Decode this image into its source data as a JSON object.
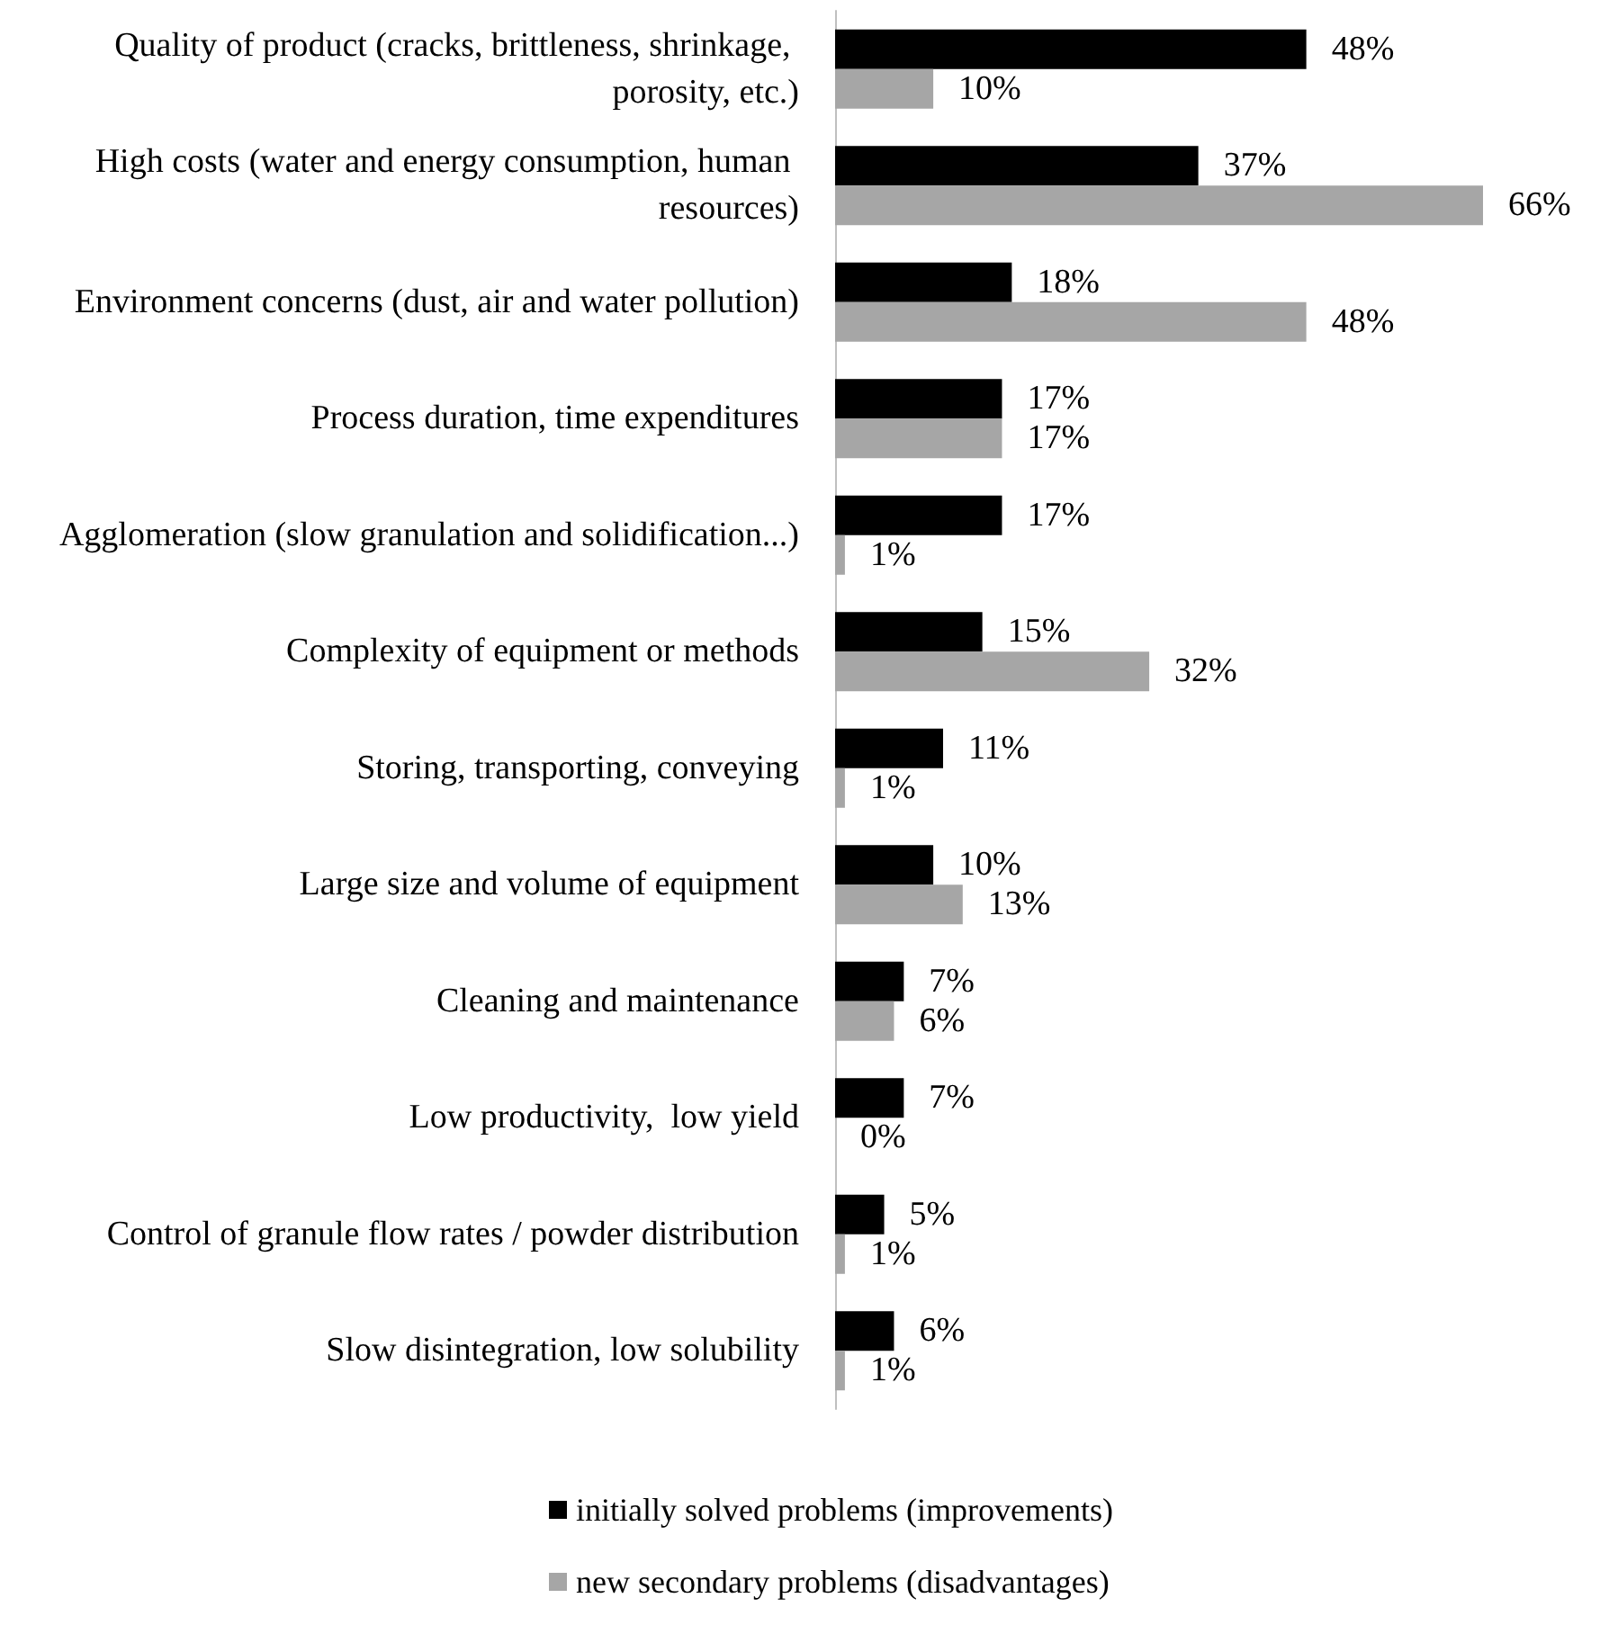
{
  "chart_data": {
    "type": "bar",
    "orientation": "horizontal",
    "categories": [
      "Quality of product (cracks, brittleness, shrinkage, porosity, etc.)",
      "High costs (water and energy consumption, human resources)",
      "Environment concerns (dust, air and water pollution)",
      "Process duration, time expenditures",
      "Agglomeration (slow granulation and solidification...)",
      "Complexity of equipment or methods",
      "Storing, transporting, conveying",
      "Large size and volume of equipment",
      "Cleaning and maintenance",
      "Low productivity,  low yield",
      "Control of granule flow rates / powder distribution",
      "Slow disintegration, low solubility"
    ],
    "series": [
      {
        "name": "initially solved problems (improvements)",
        "color": "#000000",
        "values": [
          48,
          37,
          18,
          17,
          17,
          15,
          11,
          10,
          7,
          7,
          5,
          6
        ],
        "value_labels": [
          "48%",
          "37%",
          "18%",
          "17%",
          "17%",
          "15%",
          "11%",
          "10%",
          "7%",
          "7%",
          "5%",
          "6%"
        ]
      },
      {
        "name": "new secondary problems (disadvantages)",
        "color": "#a6a6a6",
        "values": [
          10,
          66,
          48,
          17,
          1,
          32,
          1,
          13,
          6,
          0,
          1,
          1
        ],
        "value_labels": [
          "10%",
          "66%",
          "48%",
          "17%",
          "1%",
          "32%",
          "1%",
          "13%",
          "6%",
          "0%",
          "1%",
          "1%"
        ]
      }
    ],
    "grid": false,
    "legend": "bottom"
  }
}
